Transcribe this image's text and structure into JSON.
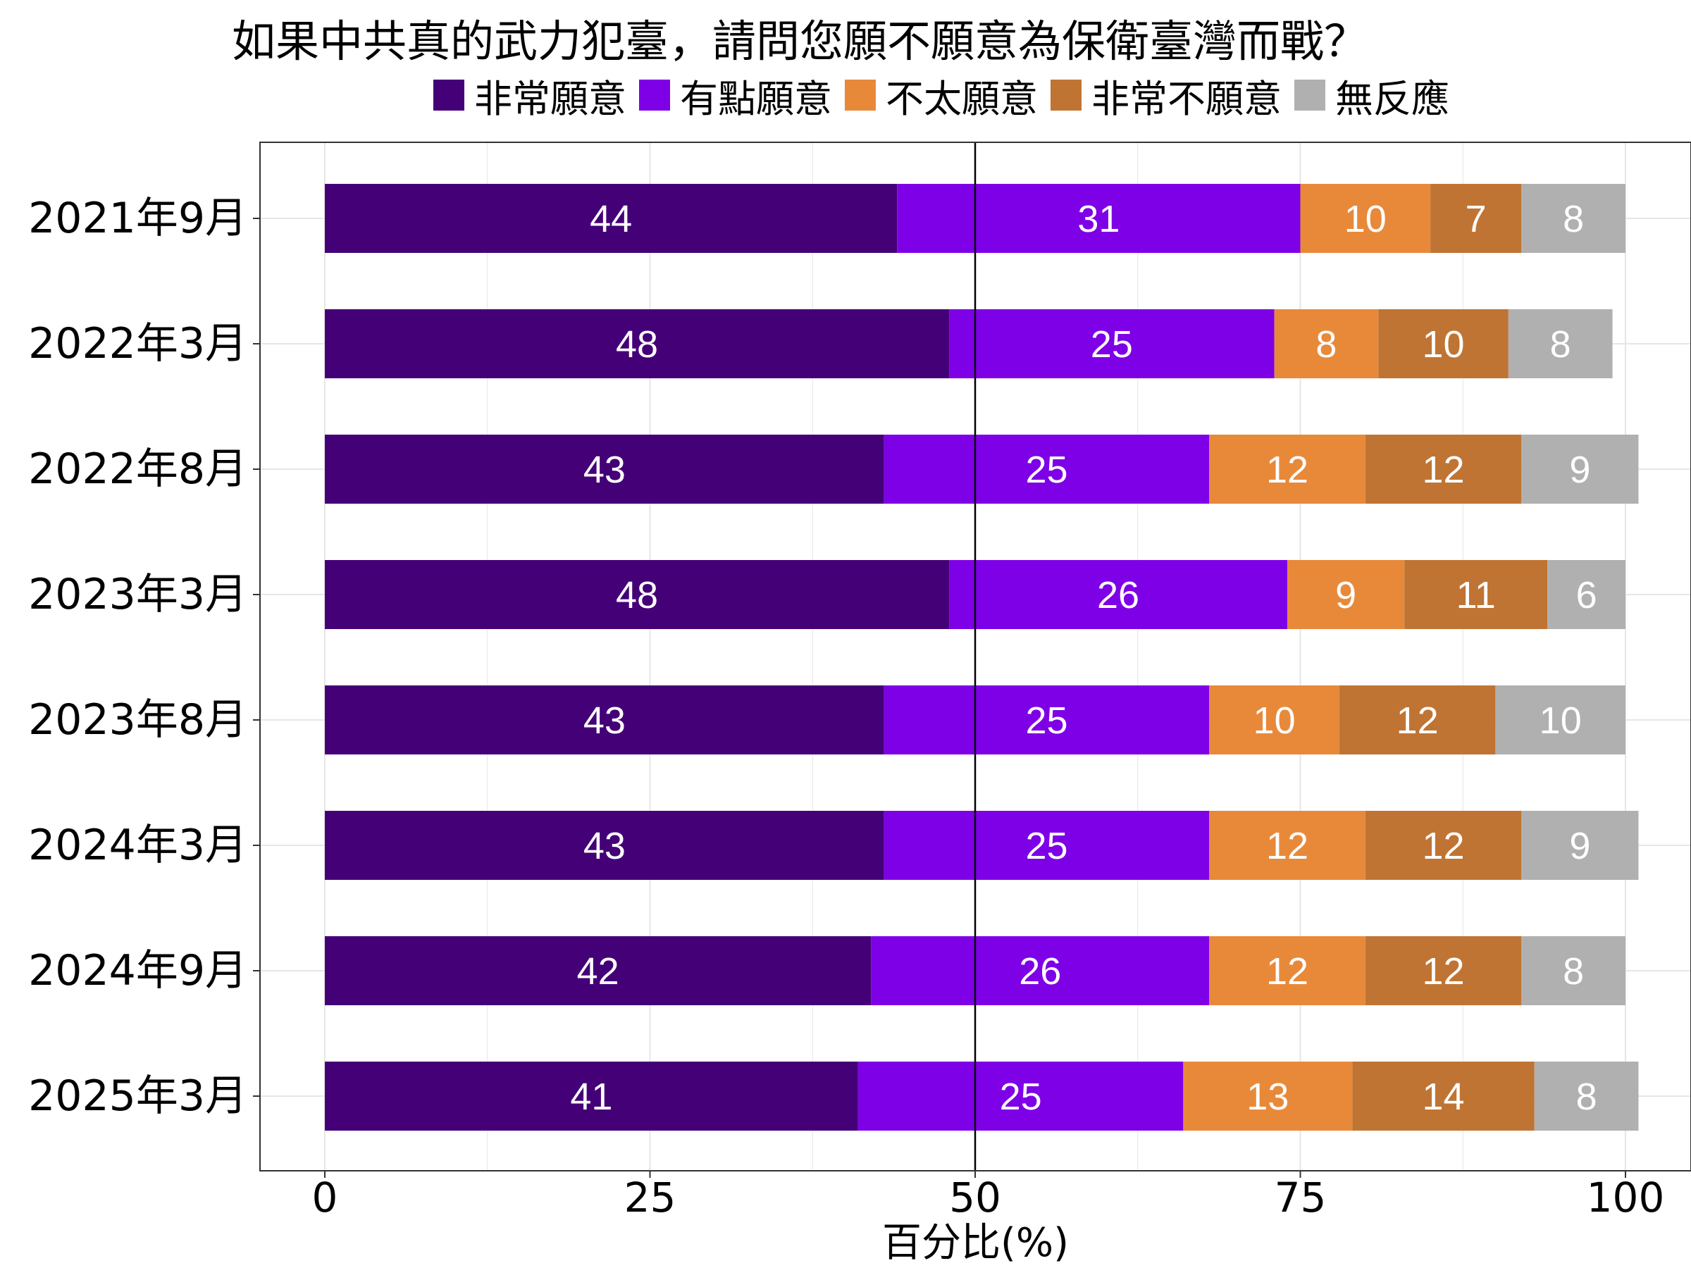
{
  "chart_data": {
    "type": "bar",
    "orientation": "horizontal",
    "stacked": true,
    "title": "如果中共真的武力犯臺，請問您願不願意為保衛臺灣而戰？",
    "xlabel": "百分比(%)",
    "ylabel": "",
    "xlim": [
      0,
      100
    ],
    "xticks": [
      "0",
      "25",
      "50",
      "75",
      "100"
    ],
    "reference_line": 50,
    "grid": true,
    "legend_position": "top",
    "categories": [
      "2021年9月",
      "2022年3月",
      "2022年8月",
      "2023年3月",
      "2023年8月",
      "2024年3月",
      "2024年9月",
      "2025年3月"
    ],
    "series": [
      {
        "name": "非常願意",
        "color": "#440077",
        "values": [
          44,
          48,
          43,
          48,
          43,
          43,
          42,
          41
        ]
      },
      {
        "name": "有點願意",
        "color": "#7E00E6",
        "values": [
          31,
          25,
          25,
          26,
          25,
          25,
          26,
          25
        ]
      },
      {
        "name": "不太願意",
        "color": "#E8893A",
        "values": [
          10,
          8,
          12,
          9,
          10,
          12,
          12,
          13
        ]
      },
      {
        "name": "非常不願意",
        "color": "#C07433",
        "values": [
          7,
          10,
          12,
          11,
          12,
          12,
          12,
          14
        ]
      },
      {
        "name": "無反應",
        "color": "#B0B0B0",
        "values": [
          8,
          8,
          9,
          6,
          10,
          9,
          8,
          8
        ]
      }
    ]
  }
}
